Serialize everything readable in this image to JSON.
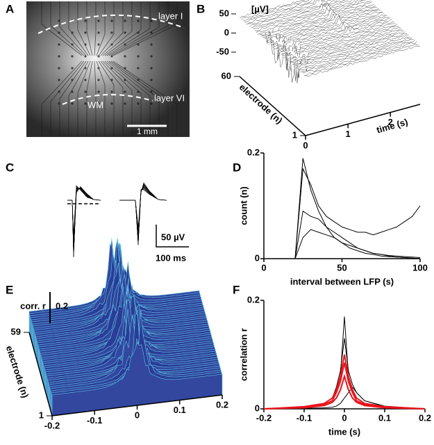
{
  "figure": {
    "panel_labels": [
      "A",
      "B",
      "C",
      "D",
      "E",
      "F"
    ],
    "image": {
      "labels": [
        "layer I",
        "layer VI",
        "WM"
      ],
      "scale_bar": "1 mm"
    },
    "traces": {
      "scale_bar_y": "50 µV",
      "scale_bar_x": "100 ms"
    }
  },
  "chart_data": [
    {
      "type": "surface",
      "z_unit": "[µV]",
      "zlim": [
        -50,
        50
      ],
      "zticks": [
        50,
        0,
        -50
      ],
      "ylabel": "electrode (n)",
      "yticks": [
        60,
        1
      ],
      "xlabel": "time (s)",
      "xlim": [
        0,
        2.7
      ],
      "xticks": [
        0,
        1,
        2
      ]
    },
    {
      "type": "line",
      "xlabel": "interval between LFP (s)",
      "ylabel": "count (n)",
      "xlim": [
        0,
        100
      ],
      "ylim": [
        0,
        0.2
      ],
      "xticks": [
        0,
        50,
        100
      ],
      "yticks": [
        0,
        0.2
      ],
      "x": [
        20,
        25,
        30,
        35,
        40,
        45,
        50,
        55,
        60,
        65,
        70,
        75,
        80,
        85,
        90,
        95,
        100
      ],
      "series": [
        {
          "color": "#000000",
          "values": [
            0,
            0.19,
            0.13,
            0.09,
            0.06,
            0.04,
            0.03,
            0.02,
            0.015,
            0.01,
            0.008,
            0.005,
            0.004,
            0.003,
            0.002,
            0.001,
            0
          ]
        },
        {
          "color": "#000000",
          "values": [
            0,
            0.17,
            0.14,
            0.1,
            0.08,
            0.07,
            0.06,
            0.055,
            0.05,
            0.05,
            0.045,
            0.05,
            0.055,
            0.06,
            0.07,
            0.08,
            0.1
          ]
        },
        {
          "color": "#000000",
          "values": [
            0,
            0.09,
            0.08,
            0.075,
            0.06,
            0.05,
            0.04,
            0.03,
            0.02,
            0.015,
            0.01,
            0.008,
            0.005,
            0.003,
            0.002,
            0.001,
            0
          ]
        },
        {
          "color": "#000000",
          "values": [
            0,
            0.04,
            0.055,
            0.05,
            0.045,
            0.04,
            0.03,
            0.025,
            0.02,
            0.015,
            0.01,
            0.008,
            0.006,
            0.005,
            0.004,
            0.003,
            0.002
          ]
        }
      ]
    },
    {
      "type": "surface",
      "zlabel": "corr. r",
      "scale_bar": 0.2,
      "ylabel": "electrode (n)",
      "yticks": [
        59,
        1
      ],
      "xlim": [
        -0.2,
        0.2
      ],
      "xticks": [
        -0.2,
        -0.1,
        0,
        0.1,
        0.2
      ]
    },
    {
      "type": "line",
      "xlabel": "time (s)",
      "ylabel": "correlation r",
      "xlim": [
        -0.2,
        0.2
      ],
      "ylim": [
        0,
        0.2
      ],
      "xticks": [
        -0.2,
        -0.1,
        0,
        0.1,
        0.2
      ],
      "yticks": [
        0,
        0.2
      ],
      "x": [
        -0.2,
        -0.1,
        -0.05,
        -0.03,
        -0.02,
        -0.01,
        0,
        0.01,
        0.02,
        0.03,
        0.05,
        0.1,
        0.2
      ],
      "series": [
        {
          "color": "#000000",
          "values": [
            0,
            0.003,
            0.008,
            0.015,
            0.03,
            0.06,
            0.17,
            0.06,
            0.03,
            0.015,
            0.008,
            0.003,
            0
          ]
        },
        {
          "color": "#000000",
          "values": [
            0,
            0.004,
            0.01,
            0.02,
            0.04,
            0.07,
            0.13,
            0.07,
            0.045,
            0.03,
            0.015,
            0.005,
            0
          ]
        },
        {
          "color": "#000000",
          "values": [
            0,
            0.001,
            0.002,
            0.003,
            0.005,
            0.01,
            0.02,
            0.03,
            0.04,
            0.03,
            0.015,
            0.004,
            0
          ]
        },
        {
          "color": "#e8141b",
          "values": [
            0,
            0.004,
            0.01,
            0.02,
            0.035,
            0.06,
            0.1,
            0.06,
            0.035,
            0.02,
            0.01,
            0.004,
            0
          ]
        },
        {
          "color": "#e8141b",
          "values": [
            0,
            0.003,
            0.008,
            0.015,
            0.03,
            0.05,
            0.085,
            0.05,
            0.03,
            0.015,
            0.008,
            0.003,
            0
          ]
        },
        {
          "color": "#e8141b",
          "values": [
            0,
            0.002,
            0.006,
            0.012,
            0.02,
            0.035,
            0.06,
            0.035,
            0.02,
            0.012,
            0.006,
            0.002,
            0
          ]
        }
      ]
    }
  ]
}
